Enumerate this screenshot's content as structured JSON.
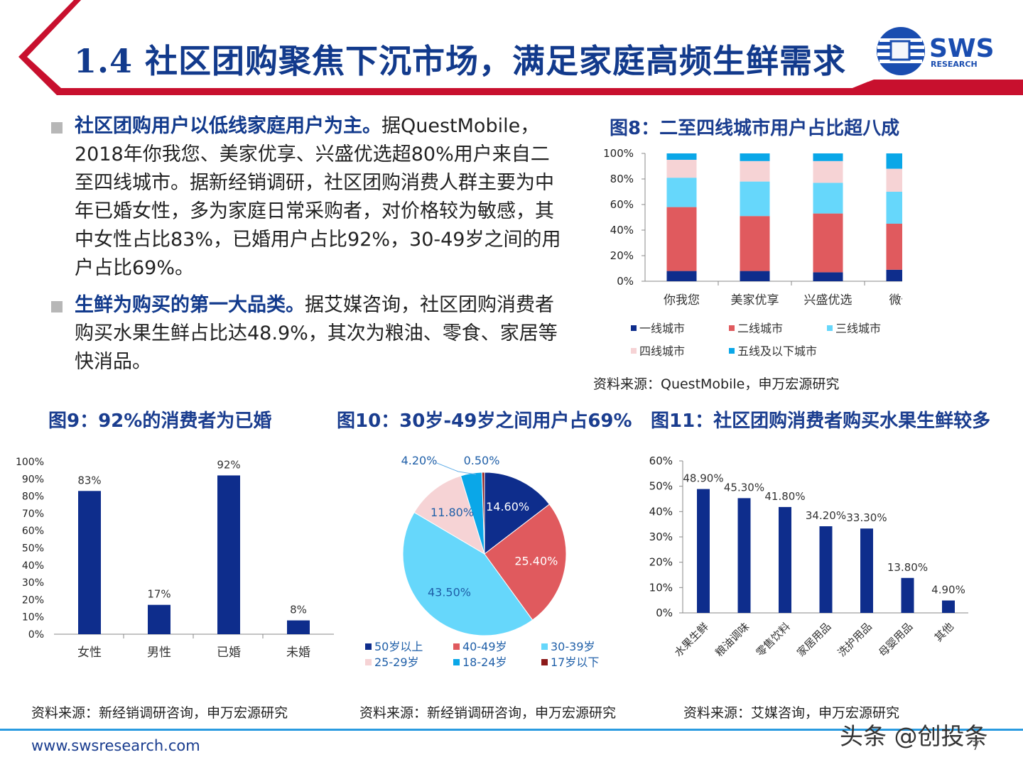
{
  "header": {
    "title": "1.4 社区团购聚焦下沉市场，满足家庭高频生鲜需求",
    "logo_text": "SWS",
    "logo_sub": "RESEARCH"
  },
  "bullets": [
    {
      "bold": "社区团购用户以低线家庭用户为主。",
      "text": "据QuestMobile，2018年你我您、美家优享、兴盛优选超80%用户来自二至四线城市。据新经销调研，社区团购消费人群主要为中年已婚女性，多为家庭日常采购者，对价格较为敏感，其中女性占比83%，已婚用户占比92%，30-49岁之间的用户占比69%。"
    },
    {
      "bold": "生鲜为购买的第一大品类。",
      "text": "据艾媒咨询，社区团购消费者购买水果生鲜占比达48.9%，其次为粮油、零食、家居等快消品。"
    }
  ],
  "fig8": {
    "title": "图8：二至四线城市用户占比超八成",
    "source": "资料来源：QuestMobile，申万宏源研究"
  },
  "fig9": {
    "title": "图9：92%的消费者为已婚",
    "source": "资料来源：新经销调研咨询，申万宏源研究"
  },
  "fig10": {
    "title": "图10：30岁-49岁之间用户占69%",
    "source": "资料来源：新经销调研咨询，申万宏源研究"
  },
  "fig11": {
    "title": "图11：社区团购消费者购买水果生鲜较多",
    "source": "资料来源：艾媒咨询，申万宏源研究"
  },
  "footer": {
    "url": "www.swsresearch.com",
    "watermark": "头条 @创投条",
    "page": "7"
  },
  "colors": {
    "navy": "#0e2d8c",
    "red": "#e05a5e",
    "cyan": "#66d7fb",
    "pink": "#f6d3d5",
    "blue": "#0aa7e8",
    "darkred": "#8c1a1a",
    "title_blue": "#123a8c",
    "header_red": "#c8102e"
  },
  "chart_data": [
    {
      "id": "fig8",
      "type": "bar",
      "stacked": true,
      "categories": [
        "你我您",
        "美家优享",
        "兴盛优选",
        "微信"
      ],
      "series": [
        {
          "name": "一线城市",
          "color": "#0e2d8c",
          "values": [
            8,
            8,
            7,
            9
          ]
        },
        {
          "name": "二线城市",
          "color": "#e05a5e",
          "values": [
            50,
            43,
            46,
            36
          ]
        },
        {
          "name": "三线城市",
          "color": "#66d7fb",
          "values": [
            23,
            27,
            24,
            25
          ]
        },
        {
          "name": "四线城市",
          "color": "#f6d3d5",
          "values": [
            14,
            16,
            17,
            18
          ]
        },
        {
          "name": "五线及以下城市",
          "color": "#0aa7e8",
          "values": [
            5,
            6,
            6,
            12
          ]
        }
      ],
      "yticks": [
        "0%",
        "20%",
        "40%",
        "60%",
        "80%",
        "100%"
      ],
      "ylim": [
        0,
        100
      ],
      "legend": "bottom"
    },
    {
      "id": "fig9",
      "type": "bar",
      "categories": [
        "女性",
        "男性",
        "已婚",
        "未婚"
      ],
      "values": [
        83,
        17,
        92,
        8
      ],
      "labels": [
        "83%",
        "17%",
        "92%",
        "8%"
      ],
      "yticks": [
        "0%",
        "10%",
        "20%",
        "30%",
        "40%",
        "50%",
        "60%",
        "70%",
        "80%",
        "90%",
        "100%"
      ],
      "ylim": [
        0,
        100
      ]
    },
    {
      "id": "fig10",
      "type": "pie",
      "slices": [
        {
          "name": "50岁以上",
          "value": 14.6,
          "label": "14.60%",
          "color": "#0e2d8c"
        },
        {
          "name": "40-49岁",
          "value": 25.4,
          "label": "25.40%",
          "color": "#e05a5e"
        },
        {
          "name": "30-39岁",
          "value": 43.5,
          "label": "43.50%",
          "color": "#66d7fb"
        },
        {
          "name": "25-29岁",
          "value": 11.8,
          "label": "11.80%",
          "color": "#f6d3d5"
        },
        {
          "name": "18-24岁",
          "value": 4.2,
          "label": "4.20%",
          "color": "#0aa7e8"
        },
        {
          "name": "17岁以下",
          "value": 0.5,
          "label": "0.50%",
          "color": "#8c1a1a"
        }
      ],
      "legend": "bottom"
    },
    {
      "id": "fig11",
      "type": "bar",
      "categories": [
        "水果生鲜",
        "粮油调味",
        "零售饮料",
        "家居用品",
        "洗护用品",
        "母婴用品",
        "其他"
      ],
      "values": [
        48.9,
        45.3,
        41.8,
        34.2,
        33.3,
        13.8,
        4.9
      ],
      "labels": [
        "48.90%",
        "45.30%",
        "41.80%",
        "34.20%",
        "33.30%",
        "13.80%",
        "4.90%"
      ],
      "yticks": [
        "0%",
        "10%",
        "20%",
        "30%",
        "40%",
        "50%",
        "60%"
      ],
      "ylim": [
        0,
        60
      ]
    }
  ]
}
